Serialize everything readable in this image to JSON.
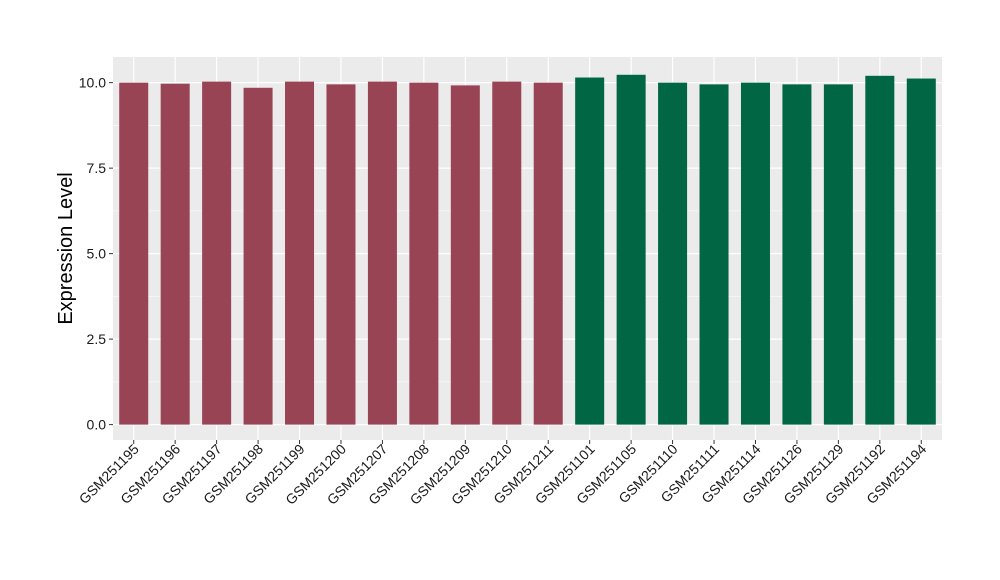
{
  "chart_data": {
    "type": "bar",
    "title": "",
    "xlabel": "",
    "ylabel": "Expression Level",
    "ylim": [
      -0.45,
      10.75
    ],
    "y_ticks": [
      "0.0",
      "2.5",
      "5.0",
      "7.5",
      "10.0"
    ],
    "y_tick_values": [
      0,
      2.5,
      5,
      7.5,
      10
    ],
    "grid": true,
    "legend": "none",
    "background": "#EBEBEB",
    "categories": [
      "GSM251195",
      "GSM251196",
      "GSM251197",
      "GSM251198",
      "GSM251199",
      "GSM251200",
      "GSM251207",
      "GSM251208",
      "GSM251209",
      "GSM251210",
      "GSM251211",
      "GSM251101",
      "GSM251105",
      "GSM251110",
      "GSM251111",
      "GSM251114",
      "GSM251126",
      "GSM251129",
      "GSM251192",
      "GSM251194"
    ],
    "values": [
      10.0,
      9.97,
      10.03,
      9.85,
      10.03,
      9.95,
      10.03,
      10.0,
      9.92,
      10.03,
      10.0,
      10.15,
      10.23,
      10.0,
      9.95,
      10.0,
      9.95,
      9.95,
      10.2,
      10.12
    ],
    "colors": [
      "#994455",
      "#994455",
      "#994455",
      "#994455",
      "#994455",
      "#994455",
      "#994455",
      "#994455",
      "#994455",
      "#994455",
      "#994455",
      "#006644",
      "#006644",
      "#006644",
      "#006644",
      "#006644",
      "#006644",
      "#006644",
      "#006644",
      "#006644"
    ]
  }
}
